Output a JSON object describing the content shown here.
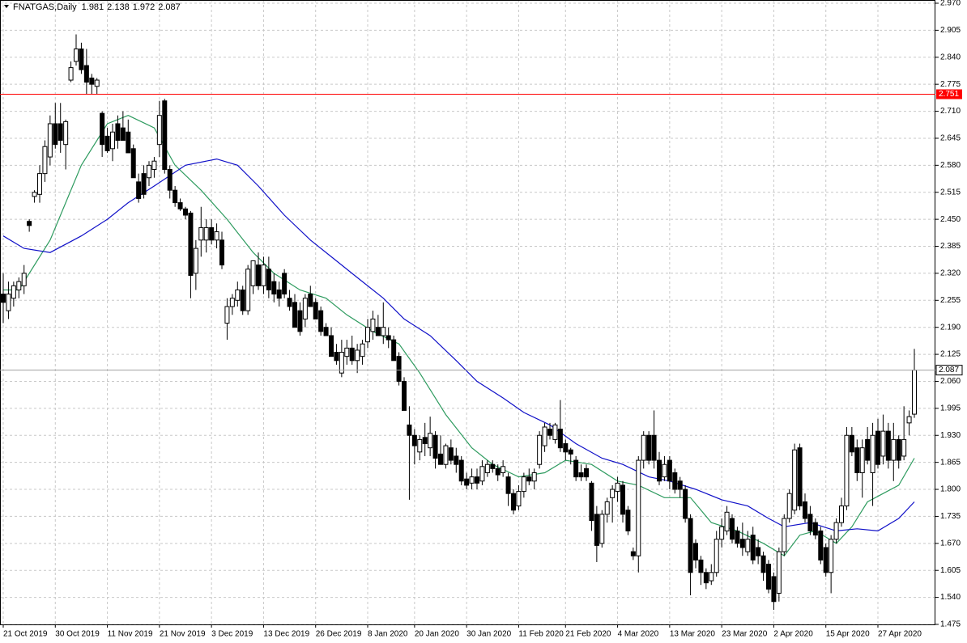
{
  "chart_data": {
    "type": "candlestick",
    "title": "FNATGAS,Daily",
    "ylim": [
      1.475,
      2.97
    ],
    "yticks": [
      {
        "value": 2.97,
        "label": "2.970"
      },
      {
        "value": 2.905,
        "label": "2.905"
      },
      {
        "value": 2.84,
        "label": "2.840"
      },
      {
        "value": 2.775,
        "label": "2.775"
      },
      {
        "value": 2.71,
        "label": "2.710"
      },
      {
        "value": 2.645,
        "label": "2.645"
      },
      {
        "value": 2.58,
        "label": "2.580"
      },
      {
        "value": 2.515,
        "label": "2.515"
      },
      {
        "value": 2.45,
        "label": "2.450"
      },
      {
        "value": 2.385,
        "label": "2.385"
      },
      {
        "value": 2.32,
        "label": "2.320"
      },
      {
        "value": 2.255,
        "label": "2.255"
      },
      {
        "value": 2.19,
        "label": "2.190"
      },
      {
        "value": 2.125,
        "label": "2.125"
      },
      {
        "value": 2.06,
        "label": "2.060"
      },
      {
        "value": 1.995,
        "label": "1.995"
      },
      {
        "value": 1.93,
        "label": "1.930"
      },
      {
        "value": 1.865,
        "label": "1.865"
      },
      {
        "value": 1.8,
        "label": "1.800"
      },
      {
        "value": 1.735,
        "label": "1.735"
      },
      {
        "value": 1.67,
        "label": "1.670"
      },
      {
        "value": 1.605,
        "label": "1.605"
      },
      {
        "value": 1.54,
        "label": "1.540"
      },
      {
        "value": 1.475,
        "label": "1.475"
      }
    ],
    "xticks": [
      {
        "value": 0,
        "label": "21 Oct 2019"
      },
      {
        "value": 10,
        "label": "30 Oct 2019"
      },
      {
        "value": 20,
        "label": "11 Nov 2019"
      },
      {
        "value": 30,
        "label": "21 Nov 2019"
      },
      {
        "value": 40,
        "label": "3 Dec 2019"
      },
      {
        "value": 50,
        "label": "13 Dec 2019"
      },
      {
        "value": 60,
        "label": "26 Dec 2019"
      },
      {
        "value": 70,
        "label": "8 Jan 2020"
      },
      {
        "value": 79,
        "label": "20 Jan 2020"
      },
      {
        "value": 89,
        "label": "30 Jan 2020"
      },
      {
        "value": 99,
        "label": "11 Feb 2020"
      },
      {
        "value": 108,
        "label": "21 Feb 2020"
      },
      {
        "value": 118,
        "label": "4 Mar 2020"
      },
      {
        "value": 128,
        "label": "13 Mar 2020"
      },
      {
        "value": 138,
        "label": "23 Mar 2020"
      },
      {
        "value": 148,
        "label": "2 Apr 2020"
      },
      {
        "value": 158,
        "label": "15 Apr 2020"
      },
      {
        "value": 168,
        "label": "27 Apr 2020"
      }
    ],
    "grid": true,
    "up_color": "#ffffff",
    "down_color": "#000000",
    "level": {
      "value": 2.751,
      "label": "2.751",
      "color": "#ff0000"
    },
    "ohlc": [
      [
        2.27,
        2.32,
        2.2,
        2.25
      ],
      [
        2.23,
        2.3,
        2.21,
        2.27
      ],
      [
        2.26,
        2.3,
        2.24,
        2.29
      ],
      [
        2.28,
        2.31,
        2.26,
        2.3
      ],
      [
        2.29,
        2.34,
        2.27,
        2.32
      ],
      [
        2.445,
        2.45,
        2.42,
        2.435
      ],
      [
        2.505,
        2.52,
        2.49,
        2.515
      ],
      [
        2.51,
        2.58,
        2.49,
        2.56
      ],
      [
        2.56,
        2.64,
        2.54,
        2.625
      ],
      [
        2.6,
        2.7,
        2.58,
        2.68
      ],
      [
        2.68,
        2.73,
        2.62,
        2.63
      ],
      [
        2.68,
        2.73,
        2.61,
        2.64
      ],
      [
        2.63,
        2.69,
        2.57,
        2.685
      ],
      [
        2.785,
        2.83,
        2.78,
        2.815
      ],
      [
        2.83,
        2.895,
        2.82,
        2.86
      ],
      [
        2.86,
        2.875,
        2.8,
        2.81
      ],
      [
        2.82,
        2.86,
        2.75,
        2.78
      ],
      [
        2.79,
        2.8,
        2.75,
        2.775
      ],
      [
        2.77,
        2.79,
        2.75,
        2.785
      ],
      [
        2.705,
        2.71,
        2.6,
        2.63
      ],
      [
        2.65,
        2.67,
        2.61,
        2.615
      ],
      [
        2.62,
        2.68,
        2.59,
        2.66
      ],
      [
        2.68,
        2.7,
        2.62,
        2.64
      ],
      [
        2.67,
        2.71,
        2.64,
        2.64
      ],
      [
        2.66,
        2.69,
        2.62,
        2.61
      ],
      [
        2.62,
        2.63,
        2.55,
        2.55
      ],
      [
        2.54,
        2.56,
        2.49,
        2.5
      ],
      [
        2.56,
        2.58,
        2.5,
        2.51
      ],
      [
        2.55,
        2.59,
        2.53,
        2.58
      ],
      [
        2.57,
        2.6,
        2.55,
        2.59
      ],
      [
        2.63,
        2.735,
        2.6,
        2.7
      ],
      [
        2.735,
        2.74,
        2.56,
        2.57
      ],
      [
        2.57,
        2.58,
        2.5,
        2.52
      ],
      [
        2.52,
        2.53,
        2.48,
        2.49
      ],
      [
        2.49,
        2.5,
        2.47,
        2.475
      ],
      [
        2.475,
        2.48,
        2.45,
        2.46
      ],
      [
        2.465,
        2.47,
        2.26,
        2.315
      ],
      [
        2.32,
        2.4,
        2.28,
        2.38
      ],
      [
        2.4,
        2.48,
        2.36,
        2.43
      ],
      [
        2.4,
        2.45,
        2.37,
        2.43
      ],
      [
        2.43,
        2.45,
        2.39,
        2.4
      ],
      [
        2.4,
        2.44,
        2.38,
        2.42
      ],
      [
        2.4,
        2.42,
        2.33,
        2.34
      ],
      [
        2.2,
        2.26,
        2.16,
        2.24
      ],
      [
        2.24,
        2.27,
        2.22,
        2.26
      ],
      [
        2.255,
        2.3,
        2.24,
        2.28
      ],
      [
        2.28,
        2.29,
        2.22,
        2.23
      ],
      [
        2.23,
        2.34,
        2.22,
        2.33
      ],
      [
        2.29,
        2.35,
        2.27,
        2.35
      ],
      [
        2.34,
        2.37,
        2.28,
        2.29
      ],
      [
        2.29,
        2.36,
        2.27,
        2.34
      ],
      [
        2.33,
        2.36,
        2.26,
        2.28
      ],
      [
        2.3,
        2.32,
        2.25,
        2.27
      ],
      [
        2.28,
        2.3,
        2.24,
        2.26
      ],
      [
        2.32,
        2.33,
        2.26,
        2.27
      ],
      [
        2.26,
        2.28,
        2.23,
        2.24
      ],
      [
        2.25,
        2.27,
        2.19,
        2.19
      ],
      [
        2.23,
        2.25,
        2.17,
        2.18
      ],
      [
        2.21,
        2.27,
        2.19,
        2.26
      ],
      [
        2.27,
        2.29,
        2.24,
        2.24
      ],
      [
        2.25,
        2.26,
        2.21,
        2.21
      ],
      [
        2.23,
        2.24,
        2.17,
        2.18
      ],
      [
        2.19,
        2.2,
        2.17,
        2.17
      ],
      [
        2.17,
        2.19,
        2.12,
        2.12
      ],
      [
        2.13,
        2.15,
        2.1,
        2.11
      ],
      [
        2.08,
        2.16,
        2.07,
        2.13
      ],
      [
        2.12,
        2.16,
        2.1,
        2.14
      ],
      [
        2.14,
        2.17,
        2.1,
        2.11
      ],
      [
        2.11,
        2.15,
        2.08,
        2.135
      ],
      [
        2.12,
        2.16,
        2.1,
        2.15
      ],
      [
        2.155,
        2.21,
        2.14,
        2.19
      ],
      [
        2.18,
        2.23,
        2.16,
        2.21
      ],
      [
        2.19,
        2.22,
        2.17,
        2.17
      ],
      [
        2.17,
        2.25,
        2.15,
        2.19
      ],
      [
        2.17,
        2.19,
        2.14,
        2.16
      ],
      [
        2.16,
        2.17,
        2.11,
        2.11
      ],
      [
        2.12,
        2.13,
        2.05,
        2.06
      ],
      [
        2.06,
        2.07,
        1.99,
        1.99
      ],
      [
        1.955,
        2.0,
        1.775,
        1.93
      ],
      [
        1.93,
        1.945,
        1.86,
        1.905
      ],
      [
        1.89,
        1.93,
        1.87,
        1.92
      ],
      [
        1.925,
        1.96,
        1.88,
        1.91
      ],
      [
        1.9,
        1.975,
        1.88,
        1.935
      ],
      [
        1.93,
        1.94,
        1.85,
        1.875
      ],
      [
        1.885,
        1.93,
        1.86,
        1.86
      ],
      [
        1.86,
        1.91,
        1.85,
        1.905
      ],
      [
        1.9,
        1.92,
        1.86,
        1.87
      ],
      [
        1.88,
        1.9,
        1.84,
        1.86
      ],
      [
        1.87,
        1.88,
        1.81,
        1.82
      ],
      [
        1.825,
        1.84,
        1.8,
        1.81
      ],
      [
        1.815,
        1.85,
        1.8,
        1.83
      ],
      [
        1.83,
        1.85,
        1.8,
        1.815
      ],
      [
        1.82,
        1.87,
        1.81,
        1.855
      ],
      [
        1.84,
        1.87,
        1.83,
        1.86
      ],
      [
        1.86,
        1.87,
        1.84,
        1.85
      ],
      [
        1.85,
        1.86,
        1.82,
        1.835
      ],
      [
        1.84,
        1.87,
        1.83,
        1.855
      ],
      [
        1.83,
        1.84,
        1.76,
        1.79
      ],
      [
        1.79,
        1.8,
        1.74,
        1.75
      ],
      [
        1.76,
        1.81,
        1.75,
        1.795
      ],
      [
        1.795,
        1.84,
        1.78,
        1.83
      ],
      [
        1.83,
        1.85,
        1.81,
        1.82
      ],
      [
        1.82,
        1.85,
        1.8,
        1.84
      ],
      [
        1.86,
        1.94,
        1.85,
        1.93
      ],
      [
        1.905,
        1.96,
        1.89,
        1.95
      ],
      [
        1.945,
        1.96,
        1.92,
        1.93
      ],
      [
        1.92,
        1.96,
        1.91,
        1.955
      ],
      [
        1.945,
        2.015,
        1.89,
        1.9
      ],
      [
        1.91,
        1.92,
        1.87,
        1.89
      ],
      [
        1.895,
        1.9,
        1.86,
        1.885
      ],
      [
        1.87,
        1.88,
        1.82,
        1.83
      ],
      [
        1.84,
        1.86,
        1.82,
        1.83
      ],
      [
        1.85,
        1.86,
        1.82,
        1.83
      ],
      [
        1.815,
        1.82,
        1.7,
        1.725
      ],
      [
        1.74,
        1.76,
        1.625,
        1.665
      ],
      [
        1.67,
        1.75,
        1.66,
        1.74
      ],
      [
        1.74,
        1.78,
        1.72,
        1.77
      ],
      [
        1.78,
        1.81,
        1.72,
        1.8
      ],
      [
        1.795,
        1.83,
        1.77,
        1.815
      ],
      [
        1.81,
        1.82,
        1.72,
        1.74
      ],
      [
        1.75,
        1.76,
        1.69,
        1.7
      ],
      [
        1.65,
        1.66,
        1.63,
        1.64
      ],
      [
        1.64,
        1.88,
        1.6,
        1.87
      ],
      [
        1.87,
        1.94,
        1.85,
        1.93
      ],
      [
        1.93,
        1.94,
        1.86,
        1.87
      ],
      [
        1.93,
        1.99,
        1.85,
        1.87
      ],
      [
        1.87,
        1.89,
        1.81,
        1.82
      ],
      [
        1.83,
        1.88,
        1.82,
        1.86
      ],
      [
        1.87,
        1.88,
        1.8,
        1.82
      ],
      [
        1.84,
        1.85,
        1.79,
        1.8
      ],
      [
        1.82,
        1.83,
        1.78,
        1.8
      ],
      [
        1.8,
        1.81,
        1.72,
        1.73
      ],
      [
        1.73,
        1.74,
        1.545,
        1.6
      ],
      [
        1.67,
        1.68,
        1.61,
        1.63
      ],
      [
        1.63,
        1.64,
        1.57,
        1.6
      ],
      [
        1.6,
        1.61,
        1.56,
        1.575
      ],
      [
        1.58,
        1.62,
        1.57,
        1.6
      ],
      [
        1.6,
        1.7,
        1.59,
        1.68
      ],
      [
        1.68,
        1.73,
        1.66,
        1.71
      ],
      [
        1.7,
        1.76,
        1.69,
        1.745
      ],
      [
        1.73,
        1.74,
        1.67,
        1.68
      ],
      [
        1.7,
        1.71,
        1.66,
        1.67
      ],
      [
        1.68,
        1.72,
        1.64,
        1.66
      ],
      [
        1.65,
        1.7,
        1.64,
        1.68
      ],
      [
        1.69,
        1.71,
        1.62,
        1.63
      ],
      [
        1.66,
        1.68,
        1.62,
        1.64
      ],
      [
        1.64,
        1.65,
        1.58,
        1.6
      ],
      [
        1.62,
        1.63,
        1.55,
        1.56
      ],
      [
        1.59,
        1.6,
        1.51,
        1.53
      ],
      [
        1.55,
        1.66,
        1.53,
        1.65
      ],
      [
        1.65,
        1.74,
        1.64,
        1.73
      ],
      [
        1.73,
        1.8,
        1.72,
        1.79
      ],
      [
        1.75,
        1.91,
        1.74,
        1.895
      ],
      [
        1.9,
        1.91,
        1.75,
        1.76
      ],
      [
        1.77,
        1.79,
        1.72,
        1.73
      ],
      [
        1.74,
        1.76,
        1.69,
        1.7
      ],
      [
        1.72,
        1.73,
        1.68,
        1.69
      ],
      [
        1.7,
        1.71,
        1.62,
        1.63
      ],
      [
        1.66,
        1.67,
        1.59,
        1.6
      ],
      [
        1.6,
        1.69,
        1.55,
        1.68
      ],
      [
        1.68,
        1.73,
        1.67,
        1.72
      ],
      [
        1.72,
        1.78,
        1.71,
        1.76
      ],
      [
        1.76,
        1.95,
        1.75,
        1.93
      ],
      [
        1.93,
        1.95,
        1.88,
        1.89
      ],
      [
        1.9,
        1.92,
        1.82,
        1.84
      ],
      [
        1.84,
        1.92,
        1.78,
        1.9
      ],
      [
        1.92,
        1.95,
        1.86,
        1.87
      ],
      [
        1.84,
        1.96,
        1.76,
        1.93
      ],
      [
        1.94,
        1.97,
        1.85,
        1.86
      ],
      [
        1.88,
        1.98,
        1.86,
        1.94
      ],
      [
        1.94,
        1.96,
        1.85,
        1.87
      ],
      [
        1.87,
        1.96,
        1.82,
        1.92
      ],
      [
        1.92,
        1.93,
        1.85,
        1.87
      ],
      [
        1.88,
        2.0,
        1.87,
        1.92
      ],
      [
        1.96,
        1.99,
        1.93,
        1.975
      ],
      [
        1.981,
        2.138,
        1.972,
        2.087
      ]
    ],
    "lines": [
      {
        "color": "#2e9b5f",
        "x": [
          0,
          3,
          9,
          15,
          20,
          24,
          29,
          33,
          38,
          43,
          48,
          52,
          57,
          62,
          66,
          71,
          76,
          80,
          85,
          90,
          94,
          99,
          104,
          108,
          113,
          118,
          122,
          127,
          132,
          136,
          141,
          146,
          150,
          153,
          156,
          160,
          163,
          166,
          169,
          172,
          175
        ],
        "values": [
          2.28,
          2.28,
          2.4,
          2.58,
          2.68,
          2.7,
          2.67,
          2.58,
          2.52,
          2.45,
          2.37,
          2.32,
          2.28,
          2.26,
          2.22,
          2.18,
          2.15,
          2.08,
          1.98,
          1.9,
          1.86,
          1.83,
          1.84,
          1.87,
          1.86,
          1.82,
          1.81,
          1.78,
          1.78,
          1.72,
          1.7,
          1.67,
          1.64,
          1.69,
          1.7,
          1.67,
          1.71,
          1.77,
          1.79,
          1.81,
          1.875
        ]
      },
      {
        "color": "#1010c8",
        "x": [
          0,
          4,
          9,
          15,
          20,
          24,
          29,
          35,
          41,
          45,
          49,
          54,
          59,
          63,
          68,
          73,
          77,
          82,
          87,
          91,
          96,
          100,
          105,
          110,
          115,
          119,
          124,
          128,
          133,
          138,
          143,
          147,
          150,
          155,
          160,
          164,
          168,
          172,
          175
        ],
        "values": [
          2.41,
          2.38,
          2.37,
          2.41,
          2.45,
          2.49,
          2.53,
          2.58,
          2.595,
          2.58,
          2.53,
          2.46,
          2.4,
          2.36,
          2.31,
          2.26,
          2.21,
          2.17,
          2.11,
          2.06,
          2.02,
          1.985,
          1.955,
          1.91,
          1.875,
          1.86,
          1.83,
          1.82,
          1.8,
          1.775,
          1.76,
          1.73,
          1.71,
          1.72,
          1.7,
          1.705,
          1.7,
          1.73,
          1.77
        ]
      }
    ]
  }
}
